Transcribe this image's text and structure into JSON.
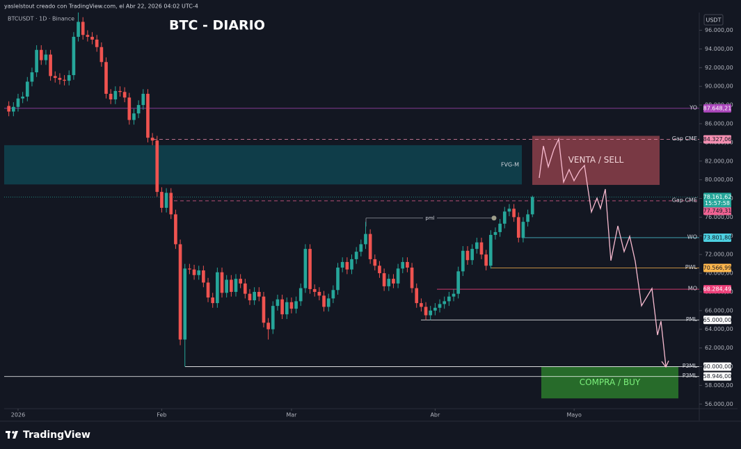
{
  "header": {
    "credit": "yaslelstout creado con TradingView.com, el Abr 22, 2026 04:02 UTC-4",
    "symbol": "BTCUSDT · 1D · Binance",
    "currency": "USDT"
  },
  "footer": {
    "brand": "TradingView"
  },
  "chart_data": {
    "type": "candlestick",
    "title": "BTC - DIARIO",
    "x": [
      -2,
      -1,
      0,
      1,
      2,
      3,
      4,
      5,
      6,
      7,
      8,
      9,
      10,
      11,
      12,
      13,
      14,
      15,
      16,
      17,
      18,
      19,
      20,
      21,
      22,
      23,
      24,
      25,
      26,
      27,
      28,
      29,
      30,
      31,
      32,
      33,
      34,
      35,
      36,
      37,
      38,
      39,
      40,
      41,
      42,
      43,
      44,
      45,
      46,
      47,
      48,
      49,
      50,
      51,
      52,
      53,
      54,
      55,
      56,
      57,
      58,
      59,
      60,
      61,
      62,
      63,
      64,
      65,
      66,
      67,
      68,
      69,
      70,
      71,
      72,
      73,
      74,
      75,
      76,
      77,
      78,
      79,
      80,
      81,
      82,
      83,
      84,
      85,
      86,
      87,
      88,
      89,
      90,
      91,
      92,
      93,
      94,
      95,
      96,
      97,
      98,
      99,
      100,
      101,
      102,
      103,
      104,
      105,
      106,
      107,
      108,
      109,
      110,
      111
    ],
    "open": [
      87900,
      87300,
      87800,
      88700,
      88900,
      90500,
      91500,
      93900,
      92800,
      93400,
      91100,
      90900,
      90700,
      90600,
      91200,
      95300,
      96900,
      95500,
      95300,
      95000,
      94200,
      92600,
      89200,
      88600,
      89500,
      89400,
      88800,
      86400,
      87100,
      88000,
      89200,
      84500,
      84200,
      78700,
      77000,
      78600,
      76300,
      73100,
      62900,
      70500,
      70400,
      69800,
      70300,
      69000,
      67400,
      66800,
      70100,
      67900,
      69300,
      68000,
      69400,
      68900,
      67800,
      67100,
      68000,
      67500,
      64700,
      64000,
      66500,
      67200,
      65600,
      66900,
      66200,
      67000,
      68400,
      72600,
      68300,
      68000,
      67600,
      66400,
      67300,
      68200,
      70600,
      71200,
      70400,
      71500,
      72300,
      73100,
      74200,
      71500,
      70800,
      70000,
      68600,
      69400,
      68900,
      70500,
      71200,
      70600,
      68400,
      66800,
      66400,
      65500,
      66000,
      66300,
      66700,
      67000,
      67500,
      67800,
      70200,
      72400,
      71400,
      72600,
      73300,
      72000,
      70800,
      74100,
      74400,
      75300,
      76600,
      76900,
      76000,
      73800,
      75500,
      76300
    ],
    "high": [
      88400,
      88300,
      89200,
      89400,
      91000,
      92000,
      94400,
      94400,
      93900,
      93900,
      91600,
      91400,
      91200,
      91700,
      95800,
      97900,
      97400,
      96000,
      95800,
      95500,
      94700,
      93100,
      89700,
      90000,
      90000,
      89900,
      89300,
      87600,
      88500,
      89700,
      89700,
      85000,
      84700,
      79200,
      79100,
      79100,
      76800,
      73600,
      71000,
      71000,
      70900,
      70800,
      70800,
      69500,
      67900,
      70600,
      70600,
      69800,
      69800,
      69900,
      69900,
      69400,
      68300,
      68500,
      68500,
      68000,
      65200,
      67000,
      67700,
      67700,
      67400,
      67400,
      67500,
      68900,
      73100,
      73100,
      68800,
      68500,
      68100,
      67800,
      68700,
      71100,
      71700,
      71700,
      72000,
      72800,
      73600,
      75500,
      74700,
      72000,
      71300,
      70500,
      69900,
      69900,
      71000,
      71700,
      71700,
      71100,
      68900,
      67300,
      66900,
      66500,
      66800,
      67200,
      67500,
      68000,
      68300,
      70700,
      72900,
      72900,
      73100,
      73800,
      73800,
      72500,
      74600,
      74900,
      75800,
      77100,
      77400,
      77400,
      76500,
      76000,
      76800,
      78300
    ],
    "low": [
      86800,
      86800,
      87300,
      88200,
      88400,
      90000,
      91000,
      92300,
      92300,
      90600,
      90400,
      90200,
      90100,
      90100,
      90700,
      94800,
      95000,
      94800,
      94500,
      93700,
      92100,
      88700,
      88100,
      88100,
      88900,
      88300,
      85900,
      85900,
      86600,
      87500,
      84000,
      83700,
      78200,
      76500,
      76500,
      75800,
      72600,
      62300,
      60000,
      69900,
      69300,
      69300,
      68500,
      66900,
      66300,
      66300,
      67400,
      67400,
      67500,
      67500,
      68400,
      67300,
      66600,
      66600,
      67000,
      64200,
      62900,
      63500,
      66000,
      65100,
      65100,
      65700,
      65700,
      66500,
      67900,
      67800,
      67500,
      67100,
      65900,
      65900,
      66800,
      67700,
      70100,
      69900,
      69900,
      71000,
      71800,
      72600,
      71000,
      70300,
      69500,
      68100,
      68100,
      68400,
      68400,
      70000,
      70100,
      67900,
      66300,
      65900,
      65000,
      65000,
      65500,
      65800,
      66200,
      66500,
      67000,
      67300,
      69700,
      70900,
      70900,
      72100,
      71500,
      70300,
      70500,
      73600,
      73900,
      74800,
      76100,
      75500,
      73300,
      73300,
      75000,
      76000
    ],
    "close": [
      87300,
      87800,
      88700,
      88900,
      90500,
      91500,
      93900,
      92800,
      93400,
      91100,
      90900,
      90700,
      90600,
      91200,
      95300,
      96900,
      95500,
      95300,
      95000,
      94200,
      92600,
      89200,
      88600,
      89500,
      89400,
      88800,
      86400,
      87100,
      88000,
      89200,
      84500,
      84200,
      78700,
      77000,
      78600,
      76300,
      73100,
      62900,
      70500,
      70400,
      69800,
      70300,
      69000,
      67400,
      66800,
      70100,
      67900,
      69300,
      68000,
      69400,
      68900,
      67800,
      67100,
      68000,
      67500,
      64700,
      64000,
      66500,
      67200,
      65600,
      66900,
      66200,
      67000,
      68400,
      72600,
      68300,
      68000,
      67600,
      66400,
      67300,
      68200,
      70600,
      71200,
      70400,
      71500,
      72300,
      73100,
      74200,
      71500,
      70800,
      70000,
      68600,
      69400,
      68900,
      70500,
      71200,
      70600,
      68400,
      66800,
      66400,
      65500,
      66000,
      66300,
      66700,
      67000,
      67500,
      67800,
      70200,
      72400,
      71400,
      72600,
      73300,
      72000,
      70800,
      74100,
      74400,
      75300,
      76600,
      76900,
      76000,
      73800,
      75500,
      76300,
      78161.62
    ],
    "up_color": "#26a69a",
    "down_color": "#ef5350",
    "xlim": [
      -3,
      147
    ],
    "xticks": [
      {
        "value": 0,
        "label": "2026"
      },
      {
        "value": 31,
        "label": "Feb"
      },
      {
        "value": 59,
        "label": "Mar"
      },
      {
        "value": 90,
        "label": "Abr"
      },
      {
        "value": 120,
        "label": "Mayo"
      }
    ],
    "ylim": [
      55500,
      97900
    ],
    "yticks": [
      {
        "value": 56000,
        "label": "56.000,00"
      },
      {
        "value": 58000,
        "label": "58.000,00"
      },
      {
        "value": 60000,
        "label": "60.000,00"
      },
      {
        "value": 62000,
        "label": "62.000,00"
      },
      {
        "value": 64000,
        "label": "64.000,00"
      },
      {
        "value": 66000,
        "label": "66.000,00"
      },
      {
        "value": 68000,
        "label": "68.000,00"
      },
      {
        "value": 70000,
        "label": "70.000,00"
      },
      {
        "value": 72000,
        "label": "72.000,00"
      },
      {
        "value": 74000,
        "label": "74.000,00"
      },
      {
        "value": 76000,
        "label": "76.000,00"
      },
      {
        "value": 78000,
        "label": "78.000,00"
      },
      {
        "value": 80000,
        "label": "80.000,00"
      },
      {
        "value": 82000,
        "label": "82.000,00"
      },
      {
        "value": 84000,
        "label": "84.000,00"
      },
      {
        "value": 86000,
        "label": "86.000,00"
      },
      {
        "value": 88000,
        "label": "88.000,00"
      },
      {
        "value": 90000,
        "label": "90.000,00"
      },
      {
        "value": 92000,
        "label": "92.000,00"
      },
      {
        "value": 94000,
        "label": "94.000,00"
      },
      {
        "value": 96000,
        "label": "96.000,00"
      }
    ],
    "grid": false,
    "levels": [
      {
        "name": "YO",
        "value": 87648.21,
        "label": "87.648,21",
        "color": "#ab47bc",
        "dashed": false
      },
      {
        "name": "Gap CME",
        "value": 84327.06,
        "label": "84.327,06",
        "color": "#f48fb1",
        "dashed": true
      },
      {
        "name": "Gap CME",
        "value": 77749.31,
        "label": "77.749,31",
        "color": "#f06292",
        "dashed": true
      },
      {
        "name": "WO",
        "value": 73801.8,
        "label": "73.801,80",
        "color": "#4dd0e1",
        "dashed": false
      },
      {
        "name": "PWL",
        "value": 70566.99,
        "label": "70.566,99",
        "color": "#ffb74d",
        "dashed": false
      },
      {
        "name": "MO",
        "value": 68284.49,
        "label": "68.284,49",
        "color": "#ec407a",
        "dashed": false
      },
      {
        "name": "PML",
        "value": 65000.0,
        "label": "65.000,00",
        "color": "#ffffff",
        "dashed": false
      },
      {
        "name": "P3ML",
        "value": 60000.0,
        "label": "60.000,00",
        "color": "#ffffff",
        "dashed": false
      },
      {
        "name": "P3ML",
        "value": 58946.0,
        "label": "58.946,00",
        "color": "#ffffff",
        "dashed": false
      }
    ],
    "last_price": {
      "value": 78161.62,
      "label": "78.161,62",
      "countdown": "15:57:58",
      "color": "#26a69a"
    },
    "zones": [
      {
        "label": "FVG-M",
        "top": 83700,
        "bottom": 79500,
        "color": "#0f4450"
      },
      {
        "label": "VENTA / SELL",
        "top": 84700,
        "bottom": 79450,
        "color": "#8c3f4a"
      },
      {
        "label": "COMPRA / BUY",
        "top": 60000,
        "bottom": 56600,
        "color": "#2b7a2b"
      }
    ],
    "marker": {
      "label": "pml",
      "value": 75900
    }
  }
}
